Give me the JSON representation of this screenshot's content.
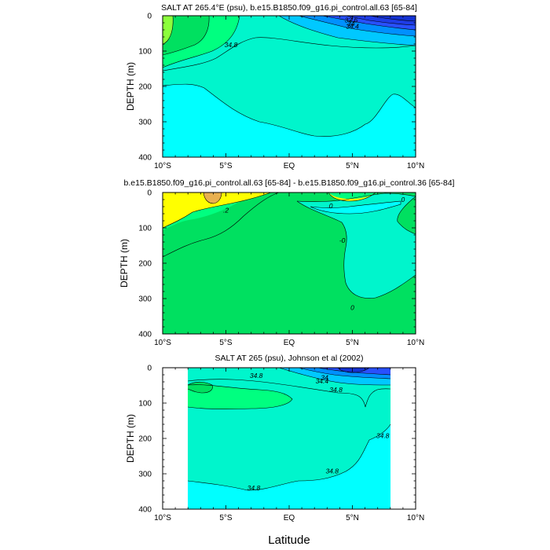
{
  "chart_data": [
    {
      "type": "contour",
      "title": "SALT AT 265.4°E (psu), b.e15.B1850.f09_g16.pi_control.all.63 [65-84]",
      "xlabel": "",
      "ylabel": "DEPTH (m)",
      "xlim": [
        -10,
        10
      ],
      "ylim": [
        400,
        0
      ],
      "x_ticks": [
        -10,
        -5,
        0,
        5,
        10
      ],
      "x_tick_labels": [
        "10°S",
        "5°S",
        "EQ",
        "5°N",
        "10°N"
      ],
      "y_ticks": [
        0,
        100,
        200,
        300,
        400
      ],
      "y_tick_labels": [
        "0",
        "100",
        "200",
        "300",
        "400"
      ],
      "contour_labels": [
        {
          "text": "33.6",
          "x": 4.9,
          "y": 12
        },
        {
          "text": "34",
          "x": 4.9,
          "y": 22
        },
        {
          "text": "34.4",
          "x": 5.0,
          "y": 30
        },
        {
          "text": "34.8",
          "x": -4.6,
          "y": 82
        }
      ],
      "fill_colors": [
        "#00ffff",
        "#00f5cc",
        "#00ff80",
        "#00e060",
        "#8cff3c",
        "#1432d2",
        "#2850ff"
      ]
    },
    {
      "type": "contour",
      "title": "b.e15.B1850.f09_g16.pi_control.all.63 [65-84] - b.e15.B1850.f09_g16.pi_control.36 [65-84]",
      "xlabel": "",
      "ylabel": "DEPTH (m)",
      "xlim": [
        -10,
        10
      ],
      "ylim": [
        400,
        0
      ],
      "x_ticks": [
        -10,
        -5,
        0,
        5,
        10
      ],
      "x_tick_labels": [
        "10°S",
        "5°S",
        "EQ",
        "5°N",
        "10°N"
      ],
      "y_ticks": [
        0,
        100,
        200,
        300,
        400
      ],
      "y_tick_labels": [
        "0",
        "100",
        "200",
        "300",
        "400"
      ],
      "contour_labels": [
        {
          "text": ".2",
          "x": -5.0,
          "y": 50
        },
        {
          "text": "0",
          "x": 3.3,
          "y": 38
        },
        {
          "text": "0",
          "x": 9.0,
          "y": 20
        },
        {
          "text": "-0",
          "x": 4.2,
          "y": 135
        },
        {
          "text": "0",
          "x": 5.0,
          "y": 325
        }
      ],
      "fill_colors": [
        "#ffff00",
        "#00e060",
        "#00ff80",
        "#00f5cc",
        "#00ffff",
        "#e8b050"
      ]
    },
    {
      "type": "contour",
      "title": "SALT AT 265 (psu), Johnson et al (2002)",
      "xlabel": "Latitude",
      "ylabel": "DEPTH (m)",
      "xlim": [
        -10,
        10
      ],
      "ylim": [
        400,
        0
      ],
      "data_xlim": [
        -8,
        8
      ],
      "x_ticks": [
        -10,
        -5,
        0,
        5,
        10
      ],
      "x_tick_labels": [
        "10°S",
        "5°S",
        "EQ",
        "5°N",
        "10°N"
      ],
      "y_ticks": [
        0,
        100,
        200,
        300,
        400
      ],
      "y_tick_labels": [
        "0",
        "100",
        "200",
        "300",
        "400"
      ],
      "contour_labels": [
        {
          "text": "34.8",
          "x": -2.6,
          "y": 22
        },
        {
          "text": "34.4",
          "x": 2.6,
          "y": 38
        },
        {
          "text": "34",
          "x": 2.8,
          "y": 28
        },
        {
          "text": "34.8",
          "x": 3.7,
          "y": 62
        },
        {
          "text": "34.8",
          "x": 7.4,
          "y": 192
        },
        {
          "text": "34.8",
          "x": 3.4,
          "y": 292
        },
        {
          "text": "34.8",
          "x": -2.8,
          "y": 340
        }
      ],
      "fill_colors": [
        "#00f5cc",
        "#00ff80",
        "#00e060",
        "#00ffff",
        "#2850ff",
        "#1432d2"
      ]
    }
  ]
}
